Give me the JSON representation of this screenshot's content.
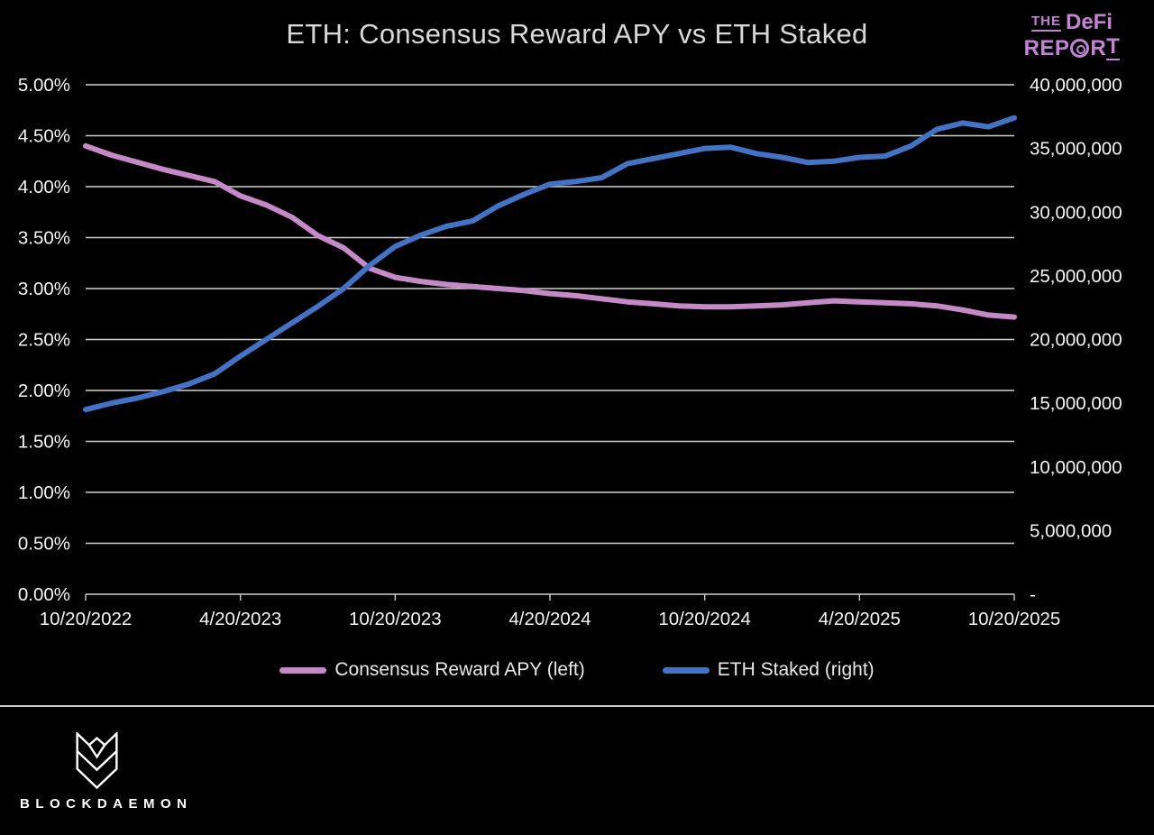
{
  "title": "ETH: Consensus Reward APY vs ETH Staked",
  "brand": {
    "the": "THE",
    "defi": "DeFi",
    "report_pre": "REP",
    "report_r2": "R",
    "report_t": "T",
    "color": "#c383d4"
  },
  "legend": [
    {
      "label": "Consensus Reward APY (left)",
      "color": "#c689c8"
    },
    {
      "label": "ETH Staked (right)",
      "color": "#4472c4"
    }
  ],
  "footer": {
    "brand": "BLOCKDAEMON"
  },
  "chart_data": {
    "type": "line",
    "title": "ETH: Consensus Reward APY vs ETH Staked",
    "grid": "horizontal",
    "grid_color": "#cfcfcf",
    "axis_text_color": "#f5f5f5",
    "background": "#000000",
    "x_unit": "months since 10/20/2022, monthly samples",
    "x_tick_months": [
      0,
      6,
      12,
      18,
      24,
      30,
      36
    ],
    "x_tick_labels": [
      "10/20/2022",
      "4/20/2023",
      "10/20/2023",
      "4/20/2024",
      "10/20/2024",
      "4/20/2025",
      "10/20/2025"
    ],
    "left_axis": {
      "min": 0,
      "max": 5,
      "tick_step": 0.5,
      "unit": "%",
      "tick_labels": [
        "5.00%",
        "4.50%",
        "4.00%",
        "3.50%",
        "3.00%",
        "2.50%",
        "2.00%",
        "1.50%",
        "1.00%",
        "0.50%",
        "0.00%"
      ]
    },
    "right_axis": {
      "min": 0,
      "max": 40000000,
      "tick_step": 5000000,
      "unit": "ETH",
      "tick_labels": [
        "40,000,000",
        "35,000,000",
        "30,000,000",
        "25,000,000",
        "20,000,000",
        "15,000,000",
        "10,000,000",
        "5,000,000",
        "-"
      ]
    },
    "series": [
      {
        "id": "consensus-reward-apy",
        "name": "Consensus Reward APY (left)",
        "axis": "left",
        "color": "#c689c8",
        "unit": "%",
        "values": [
          4.4,
          4.31,
          4.24,
          4.17,
          4.11,
          4.05,
          3.91,
          3.82,
          3.7,
          3.52,
          3.4,
          3.2,
          3.11,
          3.07,
          3.04,
          3.02,
          3.0,
          2.98,
          2.95,
          2.93,
          2.9,
          2.87,
          2.85,
          2.83,
          2.82,
          2.82,
          2.83,
          2.84,
          2.86,
          2.88,
          2.87,
          2.86,
          2.85,
          2.83,
          2.79,
          2.74,
          2.72
        ]
      },
      {
        "id": "eth-staked",
        "name": "ETH Staked (right)",
        "axis": "right",
        "color": "#4472c4",
        "unit": "ETH",
        "values": [
          14500000,
          15000000,
          15400000,
          15900000,
          16500000,
          17300000,
          18700000,
          20000000,
          21300000,
          22600000,
          24000000,
          25800000,
          27300000,
          28200000,
          28900000,
          29300000,
          30500000,
          31400000,
          32200000,
          32400000,
          32700000,
          33800000,
          34200000,
          34600000,
          35000000,
          35100000,
          34600000,
          34300000,
          33900000,
          34000000,
          34300000,
          34400000,
          35200000,
          36500000,
          37000000,
          36700000,
          37400000
        ]
      }
    ]
  }
}
